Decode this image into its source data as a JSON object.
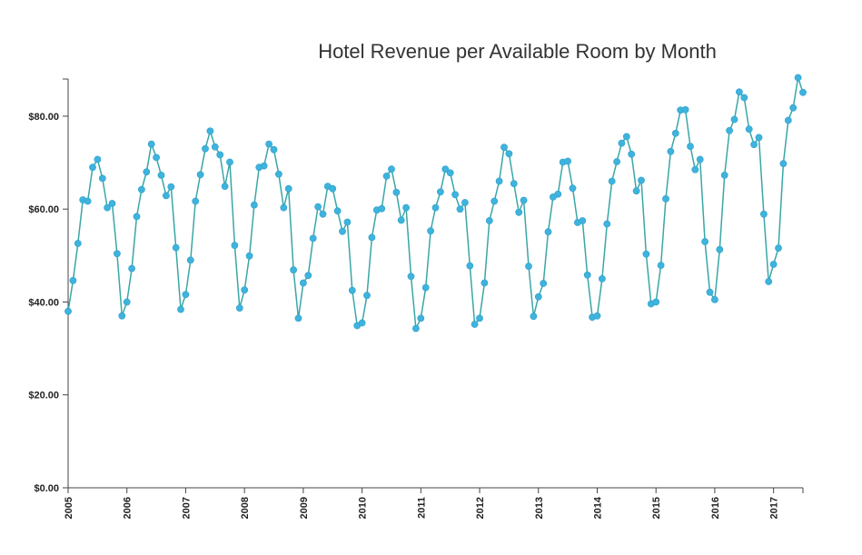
{
  "chart_data": {
    "type": "line",
    "title": "Hotel Revenue per Available Room by Month",
    "xlabel": "",
    "ylabel": "",
    "ylim": [
      0,
      88
    ],
    "x_start": "2005-01",
    "y_ticks": [
      "$0.00",
      "$20.00",
      "$40.00",
      "$60.00",
      "$80.00"
    ],
    "y_tick_values": [
      0,
      20,
      40,
      60,
      80
    ],
    "x_ticks": [
      "2005",
      "2006",
      "2007",
      "2008",
      "2009",
      "2010",
      "2011",
      "2012",
      "2013",
      "2014",
      "2015",
      "2016",
      "2017"
    ],
    "grid": false,
    "colors": {
      "line": "#3aa6a6",
      "marker": "#3eb3dc"
    },
    "series": [
      {
        "values": [
          38,
          44.6,
          52.6,
          62,
          61.7,
          69,
          70.7,
          66.6,
          60.3,
          61.2,
          50.4,
          37,
          40,
          47.2,
          58.4,
          64.2,
          68,
          74,
          71.1,
          67.3,
          62.9,
          64.8,
          51.7,
          38.4,
          41.6,
          49,
          61.7,
          67.4,
          73,
          76.8,
          73.4,
          71.7,
          64.9,
          70.1,
          52.2,
          38.7,
          42.6,
          49.9,
          60.9,
          69,
          69.3,
          74,
          72.8,
          67.5,
          60.3,
          64.4,
          46.9,
          36.5,
          44.1,
          45.7,
          53.7,
          60.5,
          58.9,
          64.9,
          64.4,
          59.6,
          55.2,
          57.2,
          42.5,
          34.9,
          35.5,
          41.4,
          53.9,
          59.8,
          60.1,
          67.1,
          68.6,
          63.6,
          57.6,
          60.3,
          45.5,
          34.3,
          36.5,
          43.1,
          55.3,
          60.3,
          63.7,
          68.6,
          67.8,
          63.1,
          60,
          61.4,
          47.8,
          35.2,
          36.5,
          44.1,
          57.5,
          61.7,
          66,
          73.3,
          71.9,
          65.5,
          59.3,
          61.9,
          47.7,
          36.9,
          41.1,
          44,
          55.1,
          62.6,
          63.2,
          70.1,
          70.3,
          64.5,
          57.1,
          57.5,
          45.8,
          36.7,
          37,
          45,
          56.8,
          66,
          70.2,
          74.2,
          75.6,
          71.8,
          63.9,
          66.2,
          50.3,
          39.6,
          40,
          47.9,
          62.2,
          72.4,
          76.3,
          81.3,
          81.4,
          73.5,
          68.5,
          70.7,
          53,
          42.1,
          40.5,
          51.3,
          67.3,
          76.9,
          79.3,
          85.2,
          84,
          77.2,
          73.9,
          75.4,
          58.9,
          44.4,
          48.1,
          51.6,
          69.8,
          79.1,
          81.8,
          88.3,
          85.1
        ]
      }
    ]
  }
}
